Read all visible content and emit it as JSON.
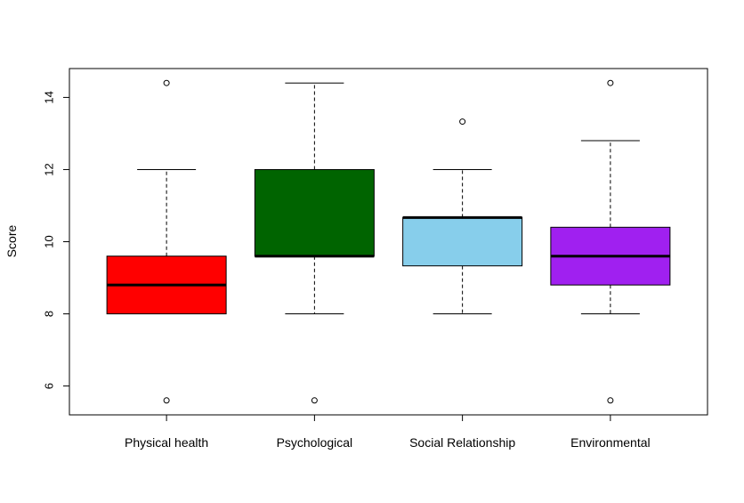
{
  "chart_data": {
    "type": "boxplot",
    "title": "",
    "xlabel": "",
    "ylabel": "Score",
    "ylim": [
      5.2,
      14.8
    ],
    "yticks": [
      6,
      8,
      10,
      12,
      14
    ],
    "grid": false,
    "legend": "none",
    "categories": [
      "Physical health",
      "Psychological",
      "Social Relationship",
      "Environmental"
    ],
    "boxes": [
      {
        "category": "Physical health",
        "color": "#ff0000",
        "whisker_low": 8.0,
        "q1": 8.0,
        "median": 8.8,
        "q3": 9.6,
        "whisker_high": 12.0,
        "outliers": [
          14.4,
          5.6
        ]
      },
      {
        "category": "Psychological",
        "color": "#006400",
        "whisker_low": 8.0,
        "q1": 9.6,
        "median": 9.6,
        "q3": 12.0,
        "whisker_high": 14.4,
        "outliers": [
          5.6
        ]
      },
      {
        "category": "Social Relationship",
        "color": "#87ceeb",
        "whisker_low": 8.0,
        "q1": 9.33,
        "median": 10.67,
        "q3": 10.67,
        "whisker_high": 12.0,
        "outliers": [
          13.33
        ]
      },
      {
        "category": "Environmental",
        "color": "#a020f0",
        "whisker_low": 8.0,
        "q1": 8.8,
        "median": 9.6,
        "q3": 10.4,
        "whisker_high": 12.8,
        "outliers": [
          14.4,
          5.6
        ]
      }
    ]
  }
}
